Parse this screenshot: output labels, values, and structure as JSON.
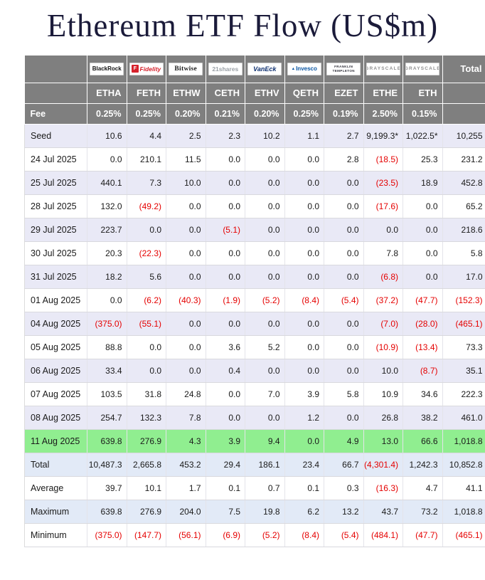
{
  "page": {
    "title": "Ethereum ETF Flow (US$m)"
  },
  "colors": {
    "title_text": "#1b1b3a",
    "header_bg": "#7f7f7f",
    "header_text": "#ffffff",
    "negative": "#e50000",
    "row_tint": "#e9e9f6",
    "highlight_green": "#90ee90",
    "summary_tint": "#e2eaf7",
    "fidelity_red": "#d6222c",
    "vaneck_navy": "#0b2d6e",
    "invesco_blue": "#0b57a4"
  },
  "chart_data": {
    "type": "table",
    "title": "Ethereum ETF Flow (US$m)",
    "issuers": [
      {
        "name": "BlackRock",
        "brand": "blackrock"
      },
      {
        "name": "Fidelity",
        "brand": "fidelity"
      },
      {
        "name": "Bitwise",
        "brand": "bitwise"
      },
      {
        "name": "21shares",
        "brand": "shares21"
      },
      {
        "name": "VanEck",
        "brand": "vaneck"
      },
      {
        "name": "Invesco",
        "brand": "invesco"
      },
      {
        "name": "FRANKLIN TEMPLETON",
        "brand": "franklin"
      },
      {
        "name": "GRAYSCALE",
        "brand": "grayscale"
      },
      {
        "name": "GRAYSCALE",
        "brand": "grayscale"
      }
    ],
    "total_label": "Total",
    "tickers": [
      "ETHA",
      "FETH",
      "ETHW",
      "CETH",
      "ETHV",
      "QETH",
      "EZET",
      "ETHE",
      "ETH"
    ],
    "fee_label": "Fee",
    "fees": [
      "0.25%",
      "0.25%",
      "0.20%",
      "0.21%",
      "0.20%",
      "0.25%",
      "0.19%",
      "2.50%",
      "0.15%"
    ],
    "rows": [
      {
        "label": "Seed",
        "highlight": false,
        "values": [
          "10.6",
          "4.4",
          "2.5",
          "2.3",
          "10.2",
          "1.1",
          "2.7",
          "9,199.3*",
          "1,022.5*",
          "10,255"
        ]
      },
      {
        "label": "24 Jul 2025",
        "highlight": false,
        "values": [
          "0.0",
          "210.1",
          "11.5",
          "0.0",
          "0.0",
          "0.0",
          "2.8",
          "(18.5)",
          "25.3",
          "231.2"
        ]
      },
      {
        "label": "25 Jul 2025",
        "highlight": false,
        "values": [
          "440.1",
          "7.3",
          "10.0",
          "0.0",
          "0.0",
          "0.0",
          "0.0",
          "(23.5)",
          "18.9",
          "452.8"
        ]
      },
      {
        "label": "28 Jul 2025",
        "highlight": false,
        "values": [
          "132.0",
          "(49.2)",
          "0.0",
          "0.0",
          "0.0",
          "0.0",
          "0.0",
          "(17.6)",
          "0.0",
          "65.2"
        ]
      },
      {
        "label": "29 Jul 2025",
        "highlight": false,
        "values": [
          "223.7",
          "0.0",
          "0.0",
          "(5.1)",
          "0.0",
          "0.0",
          "0.0",
          "0.0",
          "0.0",
          "218.6"
        ]
      },
      {
        "label": "30 Jul 2025",
        "highlight": false,
        "values": [
          "20.3",
          "(22.3)",
          "0.0",
          "0.0",
          "0.0",
          "0.0",
          "0.0",
          "7.8",
          "0.0",
          "5.8"
        ]
      },
      {
        "label": "31 Jul 2025",
        "highlight": false,
        "values": [
          "18.2",
          "5.6",
          "0.0",
          "0.0",
          "0.0",
          "0.0",
          "0.0",
          "(6.8)",
          "0.0",
          "17.0"
        ]
      },
      {
        "label": "01 Aug 2025",
        "highlight": false,
        "values": [
          "0.0",
          "(6.2)",
          "(40.3)",
          "(1.9)",
          "(5.2)",
          "(8.4)",
          "(5.4)",
          "(37.2)",
          "(47.7)",
          "(152.3)"
        ]
      },
      {
        "label": "04 Aug 2025",
        "highlight": false,
        "values": [
          "(375.0)",
          "(55.1)",
          "0.0",
          "0.0",
          "0.0",
          "0.0",
          "0.0",
          "(7.0)",
          "(28.0)",
          "(465.1)"
        ]
      },
      {
        "label": "05 Aug 2025",
        "highlight": false,
        "values": [
          "88.8",
          "0.0",
          "0.0",
          "3.6",
          "5.2",
          "0.0",
          "0.0",
          "(10.9)",
          "(13.4)",
          "73.3"
        ]
      },
      {
        "label": "06 Aug 2025",
        "highlight": false,
        "values": [
          "33.4",
          "0.0",
          "0.0",
          "0.4",
          "0.0",
          "0.0",
          "0.0",
          "10.0",
          "(8.7)",
          "35.1"
        ]
      },
      {
        "label": "07 Aug 2025",
        "highlight": false,
        "values": [
          "103.5",
          "31.8",
          "24.8",
          "0.0",
          "7.0",
          "3.9",
          "5.8",
          "10.9",
          "34.6",
          "222.3"
        ]
      },
      {
        "label": "08 Aug 2025",
        "highlight": false,
        "values": [
          "254.7",
          "132.3",
          "7.8",
          "0.0",
          "0.0",
          "1.2",
          "0.0",
          "26.8",
          "38.2",
          "461.0"
        ]
      },
      {
        "label": "11 Aug 2025",
        "highlight": true,
        "values": [
          "639.8",
          "276.9",
          "4.3",
          "3.9",
          "9.4",
          "0.0",
          "4.9",
          "13.0",
          "66.6",
          "1,018.8"
        ]
      }
    ],
    "summary_rows": [
      {
        "label": "Total",
        "values": [
          "10,487.3",
          "2,665.8",
          "453.2",
          "29.4",
          "186.1",
          "23.4",
          "66.7",
          "(4,301.4)",
          "1,242.3",
          "10,852.8"
        ]
      },
      {
        "label": "Average",
        "values": [
          "39.7",
          "10.1",
          "1.7",
          "0.1",
          "0.7",
          "0.1",
          "0.3",
          "(16.3)",
          "4.7",
          "41.1"
        ]
      },
      {
        "label": "Maximum",
        "values": [
          "639.8",
          "276.9",
          "204.0",
          "7.5",
          "19.8",
          "6.2",
          "13.2",
          "43.7",
          "73.2",
          "1,018.8"
        ]
      },
      {
        "label": "Minimum",
        "values": [
          "(375.0)",
          "(147.7)",
          "(56.1)",
          "(6.9)",
          "(5.2)",
          "(8.4)",
          "(5.4)",
          "(484.1)",
          "(47.7)",
          "(465.1)"
        ]
      }
    ]
  }
}
